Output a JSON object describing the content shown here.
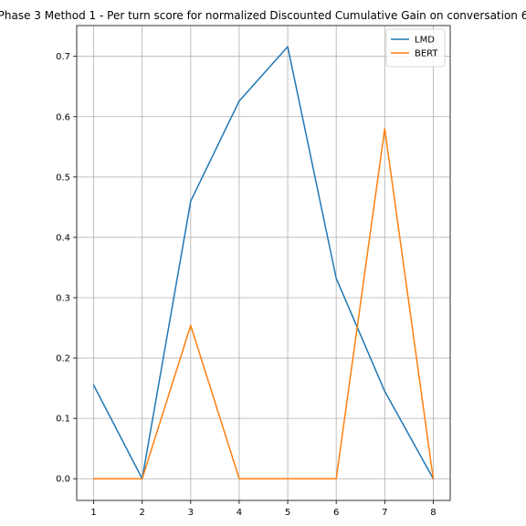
{
  "chart_data": {
    "type": "line",
    "title": "Phase 3 Method 1 - Per turn score for normalized Discounted Cumulative Gain on conversation 6",
    "xlabel": "",
    "ylabel": "",
    "x": [
      1,
      2,
      3,
      4,
      5,
      6,
      7,
      8
    ],
    "xticks": [
      "1",
      "2",
      "3",
      "4",
      "5",
      "6",
      "7",
      "8"
    ],
    "yticks": [
      "0.0",
      "0.1",
      "0.2",
      "0.3",
      "0.4",
      "0.5",
      "0.6",
      "0.7"
    ],
    "xlim": [
      0.65,
      8.35
    ],
    "ylim": [
      -0.036,
      0.751
    ],
    "grid": true,
    "legend_position": "top-right",
    "series": [
      {
        "name": "LMD",
        "color": "#1f77b4",
        "values": [
          0.155,
          0.0,
          0.46,
          0.626,
          0.716,
          0.332,
          0.145,
          0.0
        ]
      },
      {
        "name": "BERT",
        "color": "#ff7f0e",
        "values": [
          0.0,
          0.0,
          0.254,
          0.0,
          0.0,
          0.0,
          0.58,
          0.0
        ]
      }
    ]
  }
}
